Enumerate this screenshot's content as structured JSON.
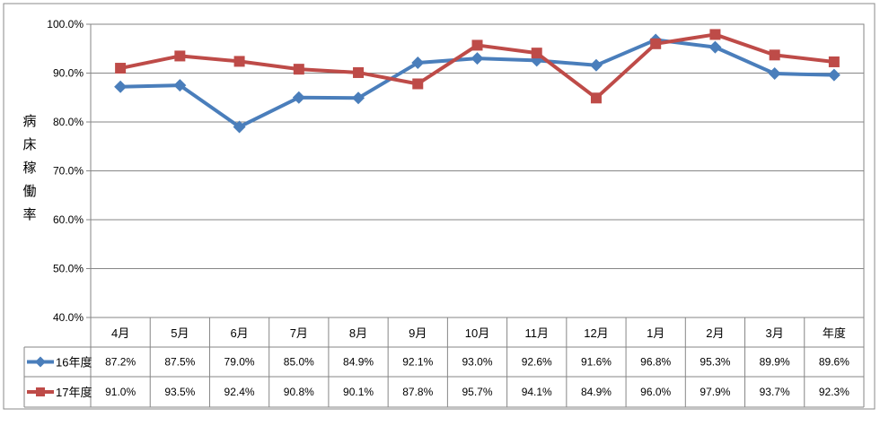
{
  "chart_data": {
    "type": "line",
    "title": "",
    "xlabel": "",
    "ylabel": "病床稼働率",
    "ylim": [
      0.4,
      1.0
    ],
    "ytick_labels": [
      "100.0%",
      "90.0%",
      "80.0%",
      "70.0%",
      "60.0%",
      "50.0%",
      "40.0%"
    ],
    "ytick_values": [
      1.0,
      0.9,
      0.8,
      0.7,
      0.6,
      0.5,
      0.4
    ],
    "grid": true,
    "legend": "data-table",
    "categories": [
      "4月",
      "5月",
      "6月",
      "7月",
      "8月",
      "9月",
      "10月",
      "11月",
      "12月",
      "1月",
      "2月",
      "3月",
      "年度"
    ],
    "series": [
      {
        "name": "16年度",
        "color": "#4a7ebb",
        "marker": "diamond",
        "values": [
          0.872,
          0.875,
          0.79,
          0.85,
          0.849,
          0.921,
          0.93,
          0.926,
          0.916,
          0.968,
          0.953,
          0.899,
          0.896
        ],
        "labels": [
          "87.2%",
          "87.5%",
          "79.0%",
          "85.0%",
          "84.9%",
          "92.1%",
          "93.0%",
          "92.6%",
          "91.6%",
          "96.8%",
          "95.3%",
          "89.9%",
          "89.6%"
        ]
      },
      {
        "name": "17年度",
        "color": "#be4b48",
        "marker": "square",
        "values": [
          0.91,
          0.935,
          0.924,
          0.908,
          0.901,
          0.878,
          0.957,
          0.941,
          0.849,
          0.96,
          0.979,
          0.937,
          0.923
        ],
        "labels": [
          "91.0%",
          "93.5%",
          "92.4%",
          "90.8%",
          "90.1%",
          "87.8%",
          "95.7%",
          "94.1%",
          "84.9%",
          "96.0%",
          "97.9%",
          "93.7%",
          "92.3%"
        ]
      }
    ]
  }
}
